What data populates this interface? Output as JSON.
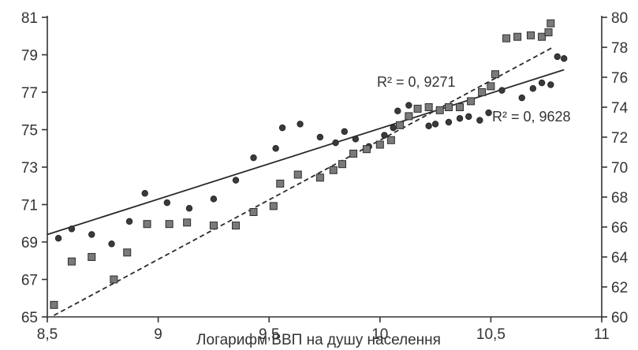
{
  "chart_data": {
    "type": "scatter",
    "title": "",
    "xlabel": "Логарифм ВВП на душу населення",
    "ylabel_left": "",
    "ylabel_right": "",
    "xlim": [
      8.5,
      11
    ],
    "ylim_left": [
      65,
      81
    ],
    "ylim_right": [
      60,
      80
    ],
    "x_ticks": [
      8.5,
      9,
      9.5,
      10,
      10.5,
      11
    ],
    "x_tick_labels": [
      "8,5",
      "9",
      "9,5",
      "10",
      "10,5",
      "11"
    ],
    "y_left_ticks": [
      65,
      67,
      69,
      71,
      73,
      75,
      77,
      79,
      81
    ],
    "y_left_tick_labels": [
      "65",
      "67",
      "69",
      "71",
      "73",
      "75",
      "77",
      "79",
      "81"
    ],
    "y_right_ticks": [
      60,
      62,
      64,
      66,
      68,
      70,
      72,
      74,
      76,
      78,
      80
    ],
    "y_right_tick_labels": [
      "60",
      "62",
      "64",
      "66",
      "68",
      "70",
      "72",
      "74",
      "76",
      "78",
      "80"
    ],
    "grid": false,
    "series": [
      {
        "marker": "circle",
        "axis": "left",
        "points": [
          [
            8.55,
            69.2
          ],
          [
            8.61,
            69.7
          ],
          [
            8.7,
            69.4
          ],
          [
            8.79,
            68.9
          ],
          [
            8.87,
            70.1
          ],
          [
            8.94,
            71.6
          ],
          [
            9.04,
            71.1
          ],
          [
            9.14,
            70.8
          ],
          [
            9.25,
            71.3
          ],
          [
            9.35,
            72.3
          ],
          [
            9.43,
            73.5
          ],
          [
            9.53,
            74.0
          ],
          [
            9.56,
            75.1
          ],
          [
            9.64,
            75.3
          ],
          [
            9.73,
            74.6
          ],
          [
            9.8,
            74.3
          ],
          [
            9.84,
            74.9
          ],
          [
            9.89,
            74.5
          ],
          [
            9.95,
            74.1
          ],
          [
            10.02,
            74.7
          ],
          [
            10.06,
            75.1
          ],
          [
            10.08,
            76.0
          ],
          [
            10.13,
            76.3
          ],
          [
            10.17,
            76.1
          ],
          [
            10.22,
            75.2
          ],
          [
            10.25,
            75.3
          ],
          [
            10.31,
            75.4
          ],
          [
            10.36,
            75.6
          ],
          [
            10.4,
            75.7
          ],
          [
            10.45,
            75.5
          ],
          [
            10.49,
            75.9
          ],
          [
            10.55,
            77.1
          ],
          [
            10.64,
            76.7
          ],
          [
            10.69,
            77.2
          ],
          [
            10.73,
            77.5
          ],
          [
            10.77,
            77.4
          ],
          [
            10.8,
            78.9
          ],
          [
            10.83,
            78.8
          ]
        ],
        "r_squared": "R² = 0, 9271",
        "trend": {
          "style": "solid",
          "from": [
            8.5,
            69.4
          ],
          "to": [
            10.83,
            78.2
          ]
        }
      },
      {
        "marker": "square",
        "axis": "right",
        "points": [
          [
            8.53,
            60.8
          ],
          [
            8.61,
            63.7
          ],
          [
            8.7,
            64.0
          ],
          [
            8.8,
            62.5
          ],
          [
            8.86,
            64.3
          ],
          [
            8.95,
            66.2
          ],
          [
            9.05,
            66.2
          ],
          [
            9.13,
            66.3
          ],
          [
            9.25,
            66.1
          ],
          [
            9.35,
            66.1
          ],
          [
            9.43,
            67.0
          ],
          [
            9.52,
            67.4
          ],
          [
            9.55,
            68.9
          ],
          [
            9.63,
            69.5
          ],
          [
            9.73,
            69.3
          ],
          [
            9.79,
            69.8
          ],
          [
            9.83,
            70.2
          ],
          [
            9.88,
            70.9
          ],
          [
            9.94,
            71.2
          ],
          [
            10.0,
            71.5
          ],
          [
            10.05,
            71.8
          ],
          [
            10.09,
            72.8
          ],
          [
            10.13,
            73.4
          ],
          [
            10.17,
            73.9
          ],
          [
            10.22,
            74.0
          ],
          [
            10.27,
            73.8
          ],
          [
            10.31,
            74.0
          ],
          [
            10.36,
            74.0
          ],
          [
            10.41,
            74.4
          ],
          [
            10.46,
            75.0
          ],
          [
            10.5,
            75.4
          ],
          [
            10.52,
            76.2
          ],
          [
            10.57,
            78.6
          ],
          [
            10.62,
            78.7
          ],
          [
            10.68,
            78.8
          ],
          [
            10.73,
            78.7
          ],
          [
            10.76,
            79.0
          ],
          [
            10.77,
            79.6
          ]
        ],
        "r_squared": "R² = 0, 9628",
        "trend": {
          "style": "dashed",
          "from": [
            8.53,
            60.1
          ],
          "to": [
            10.78,
            78.0
          ]
        }
      }
    ]
  }
}
